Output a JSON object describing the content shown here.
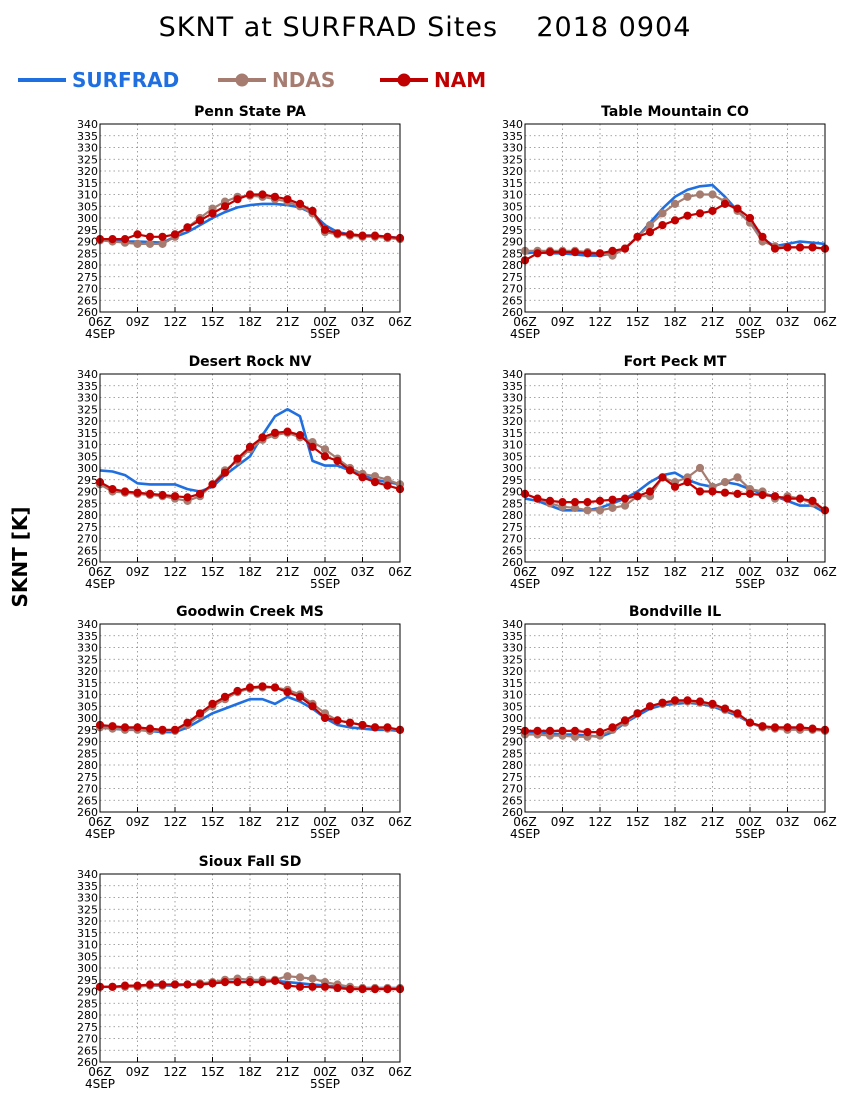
{
  "title": "SKNT at SURFRAD Sites    2018 0904",
  "ylabel": "SKNT [K]",
  "legend": [
    {
      "name": "SURFRAD",
      "color": "#1f6fe0",
      "marker": "none"
    },
    {
      "name": "NDAS",
      "color": "#a67c70",
      "marker": "circle"
    },
    {
      "name": "NAM",
      "color": "#c00000",
      "marker": "circle"
    }
  ],
  "colors": {
    "SURFRAD": "#1f6fe0",
    "NDAS": "#a67c70",
    "NAM": "#c00000"
  },
  "chart_data": [
    {
      "type": "line",
      "title": "Penn State PA",
      "x_ticks": [
        "06Z",
        "09Z",
        "12Z",
        "15Z",
        "18Z",
        "21Z",
        "00Z",
        "03Z",
        "06Z"
      ],
      "x_date_labels": [
        {
          "at": "06Z",
          "label": "4SEP"
        },
        {
          "at": "00Z",
          "label": "5SEP"
        }
      ],
      "ylim": [
        260,
        340
      ],
      "y_ticks": [
        260,
        265,
        270,
        275,
        280,
        285,
        290,
        295,
        300,
        305,
        310,
        315,
        320,
        325,
        330,
        335,
        340
      ],
      "x_hours": [
        0,
        1,
        2,
        3,
        4,
        5,
        6,
        7,
        8,
        9,
        10,
        11,
        12,
        13,
        14,
        15,
        16,
        17,
        18,
        19,
        20,
        21,
        22,
        23,
        24
      ],
      "series": [
        {
          "name": "SURFRAD",
          "values": [
            291,
            290.5,
            290,
            290,
            289.8,
            289.5,
            292,
            294,
            297,
            300,
            302.5,
            304.5,
            305.5,
            306,
            306,
            305.5,
            304.5,
            302,
            297,
            294,
            293,
            292.5,
            292.5,
            292,
            291.5
          ]
        },
        {
          "name": "NDAS",
          "values": [
            290.5,
            290,
            289.5,
            289,
            289,
            289,
            292,
            296,
            300,
            304,
            307,
            309,
            309.5,
            309,
            308,
            307,
            305,
            302,
            294,
            293,
            292.5,
            292,
            292,
            291.5,
            291
          ]
        },
        {
          "name": "NAM",
          "values": [
            291,
            291,
            291,
            293,
            292,
            292,
            293,
            296,
            299,
            302,
            305,
            308,
            310,
            310,
            309,
            308,
            306,
            303,
            295,
            293.5,
            293,
            292.5,
            292.5,
            292,
            291.5
          ]
        }
      ]
    },
    {
      "type": "line",
      "title": "Table Mountain CO",
      "x_ticks": [
        "06Z",
        "09Z",
        "12Z",
        "15Z",
        "18Z",
        "21Z",
        "00Z",
        "03Z",
        "06Z"
      ],
      "x_date_labels": [
        {
          "at": "06Z",
          "label": "4SEP"
        },
        {
          "at": "00Z",
          "label": "5SEP"
        }
      ],
      "ylim": [
        260,
        340
      ],
      "y_ticks": [
        260,
        265,
        270,
        275,
        280,
        285,
        290,
        295,
        300,
        305,
        310,
        315,
        320,
        325,
        330,
        335,
        340
      ],
      "x_hours": [
        0,
        1,
        2,
        3,
        4,
        5,
        6,
        7,
        8,
        9,
        10,
        11,
        12,
        13,
        14,
        15,
        16,
        17,
        18,
        19,
        20,
        21,
        22,
        23,
        24
      ],
      "series": [
        {
          "name": "SURFRAD",
          "values": [
            285,
            285.5,
            285,
            285,
            284.5,
            284,
            284,
            285,
            287,
            292,
            298,
            304,
            309,
            312,
            313.5,
            314,
            309,
            303,
            298,
            291,
            288,
            289,
            290,
            289.5,
            289
          ]
        },
        {
          "name": "NDAS",
          "values": [
            286,
            286,
            286,
            286,
            286,
            285.5,
            285,
            284,
            287,
            292,
            297,
            302,
            306,
            309,
            310,
            310,
            307,
            303,
            298,
            290,
            288,
            287.5,
            287.5,
            287.5,
            287
          ]
        },
        {
          "name": "NAM",
          "values": [
            282,
            285,
            285.5,
            285.5,
            285.5,
            285,
            285,
            286,
            287,
            292,
            294,
            297,
            299,
            301,
            302,
            303,
            306,
            304,
            300,
            292,
            287,
            287.5,
            287.5,
            287.5,
            287
          ]
        }
      ]
    },
    {
      "type": "line",
      "title": "Desert Rock NV",
      "x_ticks": [
        "06Z",
        "09Z",
        "12Z",
        "15Z",
        "18Z",
        "21Z",
        "00Z",
        "03Z",
        "06Z"
      ],
      "x_date_labels": [
        {
          "at": "06Z",
          "label": "4SEP"
        },
        {
          "at": "00Z",
          "label": "5SEP"
        }
      ],
      "ylim": [
        260,
        340
      ],
      "y_ticks": [
        260,
        265,
        270,
        275,
        280,
        285,
        290,
        295,
        300,
        305,
        310,
        315,
        320,
        325,
        330,
        335,
        340
      ],
      "x_hours": [
        0,
        1,
        2,
        3,
        4,
        5,
        6,
        7,
        8,
        9,
        10,
        11,
        12,
        13,
        14,
        15,
        16,
        17,
        18,
        19,
        20,
        21,
        22,
        23,
        24
      ],
      "series": [
        {
          "name": "SURFRAD",
          "values": [
            299,
            298.5,
            297,
            293.5,
            293,
            293,
            293,
            291,
            290,
            292,
            297,
            301,
            305,
            314,
            322,
            325,
            322,
            303,
            301,
            301,
            299,
            297,
            295,
            294,
            293
          ]
        },
        {
          "name": "NDAS",
          "values": [
            293,
            290,
            289.5,
            289,
            288.5,
            288,
            287,
            286,
            288,
            293,
            299,
            303,
            308,
            312,
            314,
            315,
            313,
            311,
            308,
            304,
            300,
            297.5,
            296.5,
            295,
            293
          ]
        },
        {
          "name": "NAM",
          "values": [
            294,
            291,
            290,
            289.5,
            289,
            288.5,
            288,
            287.5,
            289,
            293,
            298,
            304,
            309,
            313,
            315,
            315.5,
            314,
            309,
            305,
            303,
            299,
            296,
            294,
            292.5,
            291
          ]
        }
      ]
    },
    {
      "type": "line",
      "title": "Fort Peck MT",
      "x_ticks": [
        "06Z",
        "09Z",
        "12Z",
        "15Z",
        "18Z",
        "21Z",
        "00Z",
        "03Z",
        "06Z"
      ],
      "x_date_labels": [
        {
          "at": "06Z",
          "label": "4SEP"
        },
        {
          "at": "00Z",
          "label": "5SEP"
        }
      ],
      "ylim": [
        260,
        340
      ],
      "y_ticks": [
        260,
        265,
        270,
        275,
        280,
        285,
        290,
        295,
        300,
        305,
        310,
        315,
        320,
        325,
        330,
        335,
        340
      ],
      "x_hours": [
        0,
        1,
        2,
        3,
        4,
        5,
        6,
        7,
        8,
        9,
        10,
        11,
        12,
        13,
        14,
        15,
        16,
        17,
        18,
        19,
        20,
        21,
        22,
        23,
        24
      ],
      "series": [
        {
          "name": "SURFRAD",
          "values": [
            287,
            286,
            284,
            282,
            282,
            282,
            283,
            285,
            287,
            290,
            294,
            297,
            298,
            295,
            293,
            292,
            294,
            293,
            291,
            289,
            288,
            286,
            284,
            284,
            281
          ]
        },
        {
          "name": "NDAS",
          "values": [
            289,
            287,
            285,
            283.5,
            283,
            282,
            282,
            283,
            284,
            288,
            288,
            296,
            294,
            296,
            300,
            292,
            294,
            296,
            291,
            290,
            287,
            288,
            287,
            285,
            282
          ]
        },
        {
          "name": "NAM",
          "values": [
            289,
            287,
            286,
            285.5,
            285.5,
            285.5,
            286,
            286.5,
            287,
            288,
            290,
            296,
            292,
            294,
            290,
            290,
            289.5,
            289,
            289,
            288.5,
            288,
            287,
            287,
            286,
            282
          ]
        }
      ]
    },
    {
      "type": "line",
      "title": "Goodwin Creek MS",
      "x_ticks": [
        "06Z",
        "09Z",
        "12Z",
        "15Z",
        "18Z",
        "21Z",
        "00Z",
        "03Z",
        "06Z"
      ],
      "x_date_labels": [
        {
          "at": "06Z",
          "label": "4SEP"
        },
        {
          "at": "00Z",
          "label": "5SEP"
        }
      ],
      "ylim": [
        260,
        340
      ],
      "y_ticks": [
        260,
        265,
        270,
        275,
        280,
        285,
        290,
        295,
        300,
        305,
        310,
        315,
        320,
        325,
        330,
        335,
        340
      ],
      "x_hours": [
        0,
        1,
        2,
        3,
        4,
        5,
        6,
        7,
        8,
        9,
        10,
        11,
        12,
        13,
        14,
        15,
        16,
        17,
        18,
        19,
        20,
        21,
        22,
        23,
        24
      ],
      "series": [
        {
          "name": "SURFRAD",
          "values": [
            296,
            295.5,
            295,
            295,
            294.5,
            294,
            294,
            296,
            299,
            302,
            304,
            306,
            308,
            308,
            306,
            309,
            307,
            304,
            300,
            297,
            296,
            295.5,
            295,
            295,
            294.5
          ]
        },
        {
          "name": "NDAS",
          "values": [
            296,
            295.5,
            295,
            295,
            294.5,
            294.5,
            294.5,
            297,
            301,
            305,
            308,
            311,
            312.5,
            313,
            313,
            312,
            310,
            306,
            302,
            299,
            298,
            297,
            296,
            295.5,
            295
          ]
        },
        {
          "name": "NAM",
          "values": [
            297,
            296.5,
            296,
            296,
            295.5,
            295,
            295,
            298,
            302,
            306,
            309,
            311.5,
            313,
            313.5,
            313,
            311,
            309,
            305,
            300,
            299,
            298,
            297,
            296,
            296,
            295
          ]
        }
      ]
    },
    {
      "type": "line",
      "title": "Bondville IL",
      "x_ticks": [
        "06Z",
        "09Z",
        "12Z",
        "15Z",
        "18Z",
        "21Z",
        "00Z",
        "03Z",
        "06Z"
      ],
      "x_date_labels": [
        {
          "at": "06Z",
          "label": "4SEP"
        },
        {
          "at": "00Z",
          "label": "5SEP"
        }
      ],
      "ylim": [
        260,
        340
      ],
      "y_ticks": [
        260,
        265,
        270,
        275,
        280,
        285,
        290,
        295,
        300,
        305,
        310,
        315,
        320,
        325,
        330,
        335,
        340
      ],
      "x_hours": [
        0,
        1,
        2,
        3,
        4,
        5,
        6,
        7,
        8,
        9,
        10,
        11,
        12,
        13,
        14,
        15,
        16,
        17,
        18,
        19,
        20,
        21,
        22,
        23,
        24
      ],
      "series": [
        {
          "name": "SURFRAD",
          "values": [
            294,
            294,
            293.5,
            293,
            293,
            292.5,
            292,
            294,
            298,
            301,
            304,
            305.5,
            306,
            306.5,
            306,
            305,
            303,
            301,
            298,
            296,
            295.5,
            295.5,
            295.5,
            295,
            295
          ]
        },
        {
          "name": "NDAS",
          "values": [
            293,
            293,
            292.5,
            292.5,
            292,
            292,
            292.5,
            295,
            298,
            302,
            305,
            306,
            307,
            307,
            306.5,
            305.5,
            303.5,
            301.5,
            298,
            296,
            295.5,
            295,
            295,
            295,
            294.5
          ]
        },
        {
          "name": "NAM",
          "values": [
            294.5,
            294.5,
            294.5,
            294.5,
            294.5,
            294,
            294,
            296,
            299,
            302,
            305,
            306.5,
            307.5,
            307.5,
            307,
            306,
            304,
            302,
            298,
            296.5,
            296,
            296,
            296,
            295.5,
            295
          ]
        }
      ]
    },
    {
      "type": "line",
      "title": "Sioux Fall SD",
      "x_ticks": [
        "06Z",
        "09Z",
        "12Z",
        "15Z",
        "18Z",
        "21Z",
        "00Z",
        "03Z",
        "06Z"
      ],
      "x_date_labels": [
        {
          "at": "06Z",
          "label": "4SEP"
        },
        {
          "at": "00Z",
          "label": "5SEP"
        }
      ],
      "ylim": [
        260,
        340
      ],
      "y_ticks": [
        260,
        265,
        270,
        275,
        280,
        285,
        290,
        295,
        300,
        305,
        310,
        315,
        320,
        325,
        330,
        335,
        340
      ],
      "x_hours": [
        0,
        1,
        2,
        3,
        4,
        5,
        6,
        7,
        8,
        9,
        10,
        11,
        12,
        13,
        14,
        15,
        16,
        17,
        18,
        19,
        20,
        21,
        22,
        23,
        24
      ],
      "series": [
        {
          "name": "SURFRAD",
          "values": [
            292,
            292,
            292,
            292.5,
            292.5,
            292.5,
            292.5,
            293,
            293,
            293.5,
            294,
            294,
            294,
            294.5,
            294.5,
            294,
            293.5,
            293,
            292.5,
            292,
            291.5,
            291.5,
            291.5,
            291.5,
            291.5
          ]
        },
        {
          "name": "NDAS",
          "values": [
            292,
            292,
            292,
            292,
            292.5,
            292.5,
            293,
            293,
            293.5,
            294,
            295,
            295.5,
            295,
            295,
            295,
            296.5,
            296,
            295.5,
            294,
            293,
            292,
            291.5,
            291.5,
            291.5,
            291.5
          ]
        },
        {
          "name": "NAM",
          "values": [
            292,
            292,
            292.5,
            292.5,
            293,
            293,
            293,
            293,
            293,
            293.5,
            294,
            294,
            294,
            294,
            294.5,
            292.5,
            292,
            292,
            292,
            291.5,
            291,
            291,
            291,
            291,
            291
          ]
        }
      ]
    }
  ]
}
